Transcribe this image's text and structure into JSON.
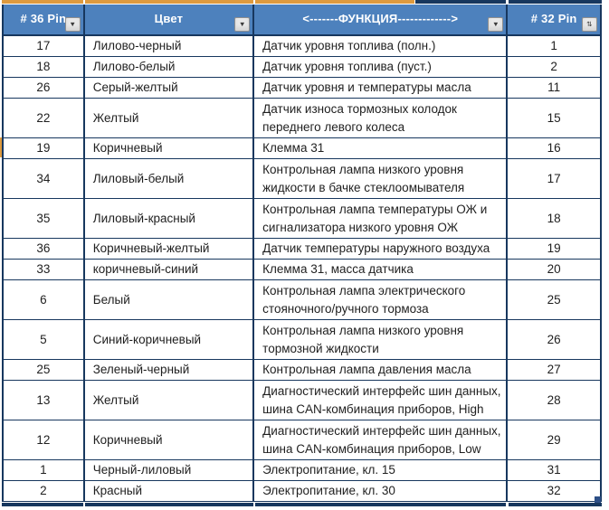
{
  "colors": {
    "header_bg": "#4d81bd",
    "header_text": "#ffffff",
    "grid_border": "#17375e",
    "body_text": "#1f1f1f",
    "orange_accent": "#dd9a3f",
    "navy_accent": "#17375e",
    "filter_button_bg": "#e9e9e9"
  },
  "icons": {
    "dropdown": "▼",
    "sort_dropdown": "⇅"
  },
  "table": {
    "columns": [
      {
        "label": "# 36 Pin",
        "filter_icon": "dropdown"
      },
      {
        "label": "Цвет",
        "filter_icon": "dropdown"
      },
      {
        "label": "<-------ФУНКЦИЯ------------->",
        "filter_icon": "dropdown"
      },
      {
        "label": "# 32 Pin",
        "filter_icon": "sort_dropdown"
      }
    ],
    "rows": [
      {
        "pin36": "17",
        "color": "Лилово-черный",
        "function": "Датчик уровня топлива (полн.)",
        "pin32": "1",
        "lines": 1
      },
      {
        "pin36": "18",
        "color": "Лилово-белый",
        "function": "Датчик уровня топлива (пуст.)",
        "pin32": "2",
        "lines": 1
      },
      {
        "pin36": "26",
        "color": "Серый-желтый",
        "function": "Датчик уровня и температуры масла",
        "pin32": "11",
        "lines": 1
      },
      {
        "pin36": "22",
        "color": "Желтый",
        "function": "Датчик износа тормозных колодок\nпереднего левого колеса",
        "pin32": "15",
        "lines": 2
      },
      {
        "pin36": "19",
        "color": "Коричневый",
        "function": "Клемма 31",
        "pin32": "16",
        "lines": 1
      },
      {
        "pin36": "34",
        "color": "Лиловый-белый",
        "function": "Контрольная лампа низкого уровня\nжидкости в бачке стеклоомывателя",
        "pin32": "17",
        "lines": 2
      },
      {
        "pin36": "35",
        "color": "Лиловый-красный",
        "function": "Контрольная лампа температуры ОЖ и\nсигнализатора низкого уровня ОЖ",
        "pin32": "18",
        "lines": 2
      },
      {
        "pin36": "36",
        "color": "Коричневый-желтый",
        "function": "Датчик температуры наружного воздуха",
        "pin32": "19",
        "lines": 1
      },
      {
        "pin36": "33",
        "color": "коричневый-синий",
        "function": "Клемма 31, масса датчика",
        "pin32": "20",
        "lines": 1
      },
      {
        "pin36": "6",
        "color": "Белый",
        "function": "Контрольная лампа электрического\nстояночного/ручного тормоза",
        "pin32": "25",
        "lines": 2
      },
      {
        "pin36": "5",
        "color": "Синий-коричневый",
        "function": "Контрольная лампа низкого уровня\nтормозной жидкости",
        "pin32": "26",
        "lines": 2
      },
      {
        "pin36": "25",
        "color": "Зеленый-черный",
        "function": "Контрольная лампа давления масла",
        "pin32": "27",
        "lines": 1
      },
      {
        "pin36": "13",
        "color": "Желтый",
        "function": "Диагностический интерфейс шин данных,\nшина CAN-комбинация приборов, High",
        "pin32": "28",
        "lines": 2
      },
      {
        "pin36": "12",
        "color": "Коричневый",
        "function": "Диагностический интерфейс шин данных,\nшина CAN-комбинация приборов, Low",
        "pin32": "29",
        "lines": 2
      },
      {
        "pin36": "1",
        "color": "Черный-лиловый",
        "function": "Электропитание, кл. 15",
        "pin32": "31",
        "lines": 1
      },
      {
        "pin36": "2",
        "color": "Красный",
        "function": "Электропитание, кл. 30",
        "pin32": "32",
        "lines": 1
      }
    ]
  }
}
